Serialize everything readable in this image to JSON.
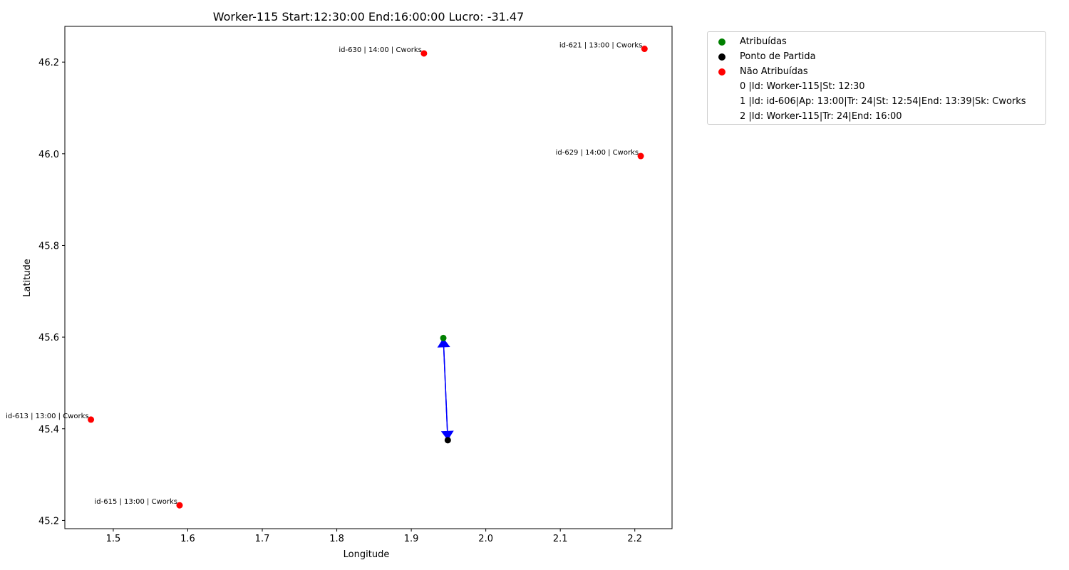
{
  "chart_data": {
    "type": "scatter",
    "title": "Worker-115 Start:12:30:00 End:16:00:00 Lucro: -31.47",
    "xlabel": "Longitude",
    "ylabel": "Latitude",
    "xlim": [
      1.435,
      2.25
    ],
    "ylim": [
      45.182,
      46.278
    ],
    "xticks": [
      "1.5",
      "1.6",
      "1.7",
      "1.8",
      "1.9",
      "2.0",
      "2.1",
      "2.2"
    ],
    "yticks": [
      "45.2",
      "45.4",
      "45.6",
      "45.8",
      "46.0",
      "46.2"
    ],
    "grid": false,
    "legend_placement": "outside-upper-right",
    "colors": {
      "assigned": "#008000",
      "start": "#000000",
      "unassigned": "#ff0000",
      "route": "#0000ff"
    },
    "series": [
      {
        "name": "Atribuídas",
        "color": "#008000",
        "points": [
          {
            "x": 1.943,
            "y": 45.598
          }
        ]
      },
      {
        "name": "Ponto de Partida",
        "color": "#000000",
        "points": [
          {
            "x": 1.949,
            "y": 45.375
          }
        ]
      },
      {
        "name": "Não Atribuídas",
        "color": "#ff0000",
        "points": [
          {
            "x": 1.917,
            "y": 46.219,
            "label": "id-630 | 14:00 | Cworks"
          },
          {
            "x": 2.213,
            "y": 46.229,
            "label": "id-621 | 13:00 | Cworks"
          },
          {
            "x": 2.208,
            "y": 45.995,
            "label": "id-629 | 14:00 | Cworks"
          },
          {
            "x": 1.47,
            "y": 45.42,
            "label": "id-613 | 13:00 | Cworks"
          },
          {
            "x": 1.589,
            "y": 45.233,
            "label": "id-615 | 13:00 | Cworks"
          }
        ]
      }
    ],
    "routes": [
      {
        "from": {
          "x": 1.949,
          "y": 45.375
        },
        "to": {
          "x": 1.943,
          "y": 45.598
        }
      },
      {
        "from": {
          "x": 1.943,
          "y": 45.598
        },
        "to": {
          "x": 1.949,
          "y": 45.375
        }
      }
    ],
    "legend": [
      {
        "label": "Atribuídas",
        "color": "#008000"
      },
      {
        "label": "Ponto de Partida",
        "color": "#000000"
      },
      {
        "label": "Não Atribuídas",
        "color": "#ff0000"
      },
      {
        "label": "0 |Id: Worker-115|St: 12:30",
        "color": ""
      },
      {
        "label": "1 |Id: id-606|Ap: 13:00|Tr: 24|St: 12:54|End: 13:39|Sk: Cworks",
        "color": ""
      },
      {
        "label": "2 |Id: Worker-115|Tr: 24|End: 16:00",
        "color": ""
      }
    ]
  }
}
